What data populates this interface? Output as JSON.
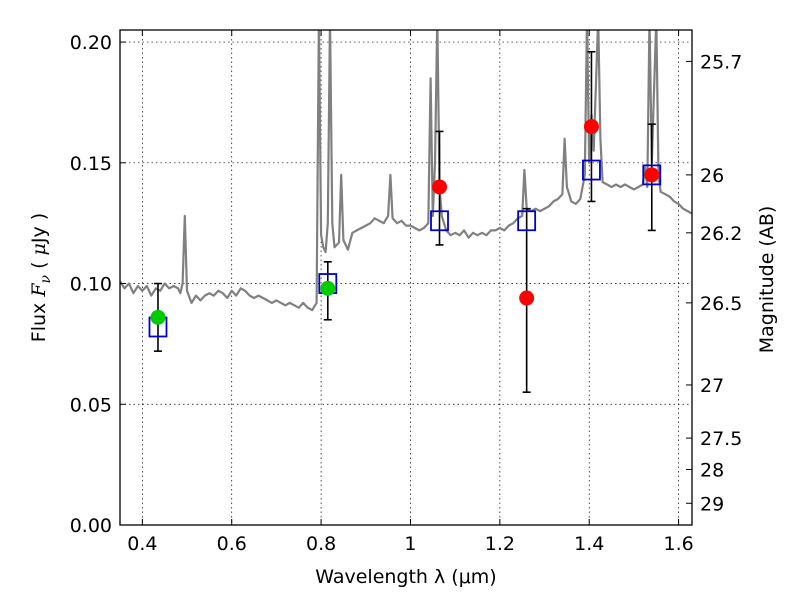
{
  "chart_data": {
    "type": "scatter",
    "xlabel": "Wavelength  λ (μm)",
    "ylabel_parts": [
      "Flux ",
      "F",
      "ν",
      " ( ",
      "μ",
      "Jy )"
    ],
    "y2label": "Magnitude (AB)",
    "xlim": [
      0.35,
      1.63
    ],
    "ylim": [
      0.0,
      0.205
    ],
    "grid": true,
    "x_ticks": [
      {
        "value": 0.4,
        "label": "0.4"
      },
      {
        "value": 0.6,
        "label": "0.6"
      },
      {
        "value": 0.8,
        "label": "0.8"
      },
      {
        "value": 1.0,
        "label": "1"
      },
      {
        "value": 1.2,
        "label": "1.2"
      },
      {
        "value": 1.4,
        "label": "1.4"
      },
      {
        "value": 1.6,
        "label": "1.6"
      }
    ],
    "y_ticks": [
      {
        "value": 0.0,
        "label": "0.00"
      },
      {
        "value": 0.05,
        "label": "0.05"
      },
      {
        "value": 0.1,
        "label": "0.10"
      },
      {
        "value": 0.15,
        "label": "0.15"
      },
      {
        "value": 0.2,
        "label": "0.20"
      }
    ],
    "mag_ticks": [
      {
        "flux": 0.192,
        "label": "25.7"
      },
      {
        "flux": 0.145,
        "label": "26"
      },
      {
        "flux": 0.121,
        "label": "26.2"
      },
      {
        "flux": 0.092,
        "label": "26.5"
      },
      {
        "flux": 0.058,
        "label": "27"
      },
      {
        "flux": 0.036,
        "label": "27.5"
      },
      {
        "flux": 0.023,
        "label": "28"
      },
      {
        "flux": 0.009,
        "label": "29"
      }
    ],
    "model_spectrum": {
      "color": "#808080",
      "points": [
        [
          0.35,
          0.101
        ],
        [
          0.36,
          0.098
        ],
        [
          0.37,
          0.1
        ],
        [
          0.38,
          0.096
        ],
        [
          0.39,
          0.099
        ],
        [
          0.4,
          0.097
        ],
        [
          0.41,
          0.099
        ],
        [
          0.42,
          0.095
        ],
        [
          0.43,
          0.098
        ],
        [
          0.44,
          0.097
        ],
        [
          0.45,
          0.1
        ],
        [
          0.46,
          0.098
        ],
        [
          0.47,
          0.099
        ],
        [
          0.48,
          0.098
        ],
        [
          0.485,
          0.096
        ],
        [
          0.49,
          0.1
        ],
        [
          0.495,
          0.128
        ],
        [
          0.5,
          0.097
        ],
        [
          0.51,
          0.092
        ],
        [
          0.52,
          0.095
        ],
        [
          0.53,
          0.093
        ],
        [
          0.54,
          0.095
        ],
        [
          0.55,
          0.096
        ],
        [
          0.56,
          0.095
        ],
        [
          0.57,
          0.097
        ],
        [
          0.58,
          0.096
        ],
        [
          0.59,
          0.094
        ],
        [
          0.6,
          0.097
        ],
        [
          0.61,
          0.095
        ],
        [
          0.62,
          0.098
        ],
        [
          0.63,
          0.097
        ],
        [
          0.64,
          0.095
        ],
        [
          0.65,
          0.094
        ],
        [
          0.66,
          0.095
        ],
        [
          0.67,
          0.094
        ],
        [
          0.68,
          0.093
        ],
        [
          0.69,
          0.092
        ],
        [
          0.7,
          0.093
        ],
        [
          0.71,
          0.092
        ],
        [
          0.72,
          0.091
        ],
        [
          0.73,
          0.092
        ],
        [
          0.74,
          0.091
        ],
        [
          0.75,
          0.09
        ],
        [
          0.76,
          0.092
        ],
        [
          0.77,
          0.09
        ],
        [
          0.78,
          0.089
        ],
        [
          0.79,
          0.092
        ],
        [
          0.795,
          0.21
        ],
        [
          0.8,
          0.12
        ],
        [
          0.805,
          0.115
        ],
        [
          0.81,
          0.113
        ],
        [
          0.815,
          0.125
        ],
        [
          0.82,
          0.21
        ],
        [
          0.825,
          0.125
        ],
        [
          0.83,
          0.115
        ],
        [
          0.84,
          0.117
        ],
        [
          0.845,
          0.145
        ],
        [
          0.85,
          0.118
        ],
        [
          0.86,
          0.114
        ],
        [
          0.87,
          0.121
        ],
        [
          0.88,
          0.122
        ],
        [
          0.89,
          0.123
        ],
        [
          0.9,
          0.124
        ],
        [
          0.91,
          0.125
        ],
        [
          0.92,
          0.127
        ],
        [
          0.93,
          0.126
        ],
        [
          0.94,
          0.125
        ],
        [
          0.95,
          0.128
        ],
        [
          0.955,
          0.145
        ],
        [
          0.96,
          0.127
        ],
        [
          0.97,
          0.125
        ],
        [
          0.98,
          0.126
        ],
        [
          0.99,
          0.124
        ],
        [
          1.0,
          0.124
        ],
        [
          1.01,
          0.123
        ],
        [
          1.02,
          0.122
        ],
        [
          1.03,
          0.123
        ],
        [
          1.04,
          0.125
        ],
        [
          1.045,
          0.185
        ],
        [
          1.05,
          0.128
        ],
        [
          1.055,
          0.15
        ],
        [
          1.06,
          0.21
        ],
        [
          1.065,
          0.14
        ],
        [
          1.07,
          0.128
        ],
        [
          1.08,
          0.122
        ],
        [
          1.09,
          0.12
        ],
        [
          1.1,
          0.121
        ],
        [
          1.11,
          0.12
        ],
        [
          1.12,
          0.122
        ],
        [
          1.13,
          0.119
        ],
        [
          1.14,
          0.121
        ],
        [
          1.15,
          0.12
        ],
        [
          1.16,
          0.121
        ],
        [
          1.17,
          0.12
        ],
        [
          1.18,
          0.122
        ],
        [
          1.19,
          0.122
        ],
        [
          1.2,
          0.123
        ],
        [
          1.21,
          0.122
        ],
        [
          1.22,
          0.124
        ],
        [
          1.23,
          0.125
        ],
        [
          1.24,
          0.127
        ],
        [
          1.25,
          0.128
        ],
        [
          1.255,
          0.147
        ],
        [
          1.26,
          0.131
        ],
        [
          1.27,
          0.13
        ],
        [
          1.28,
          0.131
        ],
        [
          1.29,
          0.13
        ],
        [
          1.3,
          0.131
        ],
        [
          1.31,
          0.132
        ],
        [
          1.32,
          0.134
        ],
        [
          1.33,
          0.135
        ],
        [
          1.34,
          0.137
        ],
        [
          1.345,
          0.16
        ],
        [
          1.35,
          0.14
        ],
        [
          1.36,
          0.134
        ],
        [
          1.37,
          0.133
        ],
        [
          1.38,
          0.135
        ],
        [
          1.39,
          0.145
        ],
        [
          1.395,
          0.21
        ],
        [
          1.4,
          0.15
        ],
        [
          1.405,
          0.17
        ],
        [
          1.41,
          0.155
        ],
        [
          1.42,
          0.21
        ],
        [
          1.425,
          0.16
        ],
        [
          1.43,
          0.142
        ],
        [
          1.44,
          0.141
        ],
        [
          1.45,
          0.14
        ],
        [
          1.46,
          0.141
        ],
        [
          1.47,
          0.14
        ],
        [
          1.48,
          0.141
        ],
        [
          1.49,
          0.14
        ],
        [
          1.5,
          0.139
        ],
        [
          1.51,
          0.14
        ],
        [
          1.52,
          0.141
        ],
        [
          1.525,
          0.148
        ],
        [
          1.53,
          0.14
        ],
        [
          1.535,
          0.21
        ],
        [
          1.54,
          0.15
        ],
        [
          1.55,
          0.21
        ],
        [
          1.555,
          0.145
        ],
        [
          1.56,
          0.138
        ],
        [
          1.57,
          0.137
        ],
        [
          1.58,
          0.136
        ],
        [
          1.59,
          0.134
        ],
        [
          1.6,
          0.133
        ],
        [
          1.61,
          0.131
        ],
        [
          1.62,
          0.13
        ],
        [
          1.63,
          0.129
        ]
      ]
    },
    "model_fluxes": [
      {
        "x": 0.435,
        "y": 0.082
      },
      {
        "x": 0.815,
        "y": 0.1
      },
      {
        "x": 1.065,
        "y": 0.126
      },
      {
        "x": 1.26,
        "y": 0.126
      },
      {
        "x": 1.405,
        "y": 0.147
      },
      {
        "x": 1.54,
        "y": 0.145
      }
    ],
    "model_flux_color": "#0000cc",
    "observed": [
      {
        "x": 0.435,
        "y": 0.086,
        "yerr_low": 0.072,
        "yerr_high": 0.1,
        "color": "#00cc00"
      },
      {
        "x": 0.815,
        "y": 0.098,
        "yerr_low": 0.085,
        "yerr_high": 0.109,
        "color": "#00cc00"
      },
      {
        "x": 1.065,
        "y": 0.14,
        "yerr_low": 0.116,
        "yerr_high": 0.163,
        "color": "#ff0000"
      },
      {
        "x": 1.26,
        "y": 0.094,
        "yerr_low": 0.055,
        "yerr_high": 0.131,
        "color": "#ff0000"
      },
      {
        "x": 1.405,
        "y": 0.165,
        "yerr_low": 0.134,
        "yerr_high": 0.196,
        "color": "#ff0000"
      },
      {
        "x": 1.54,
        "y": 0.145,
        "yerr_low": 0.122,
        "yerr_high": 0.166,
        "color": "#ff0000"
      }
    ]
  }
}
